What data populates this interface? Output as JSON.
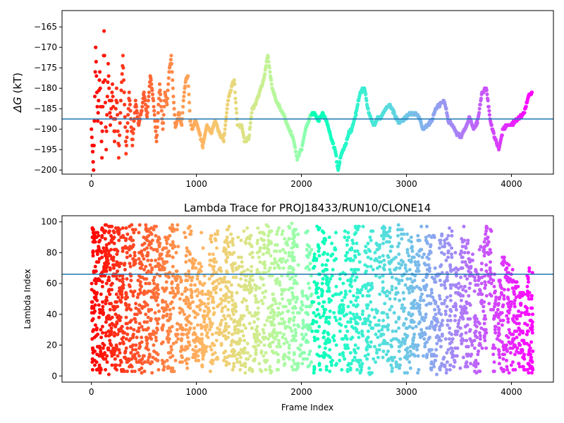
{
  "chart_data": [
    {
      "type": "scatter",
      "title": "",
      "xlabel": "",
      "ylabel": "ΔG (kT)",
      "ylabel_symbol": "ΔG",
      "ylabel_unit": "(kT)",
      "xlim": [
        -280,
        4400
      ],
      "ylim": [
        -201,
        -161
      ],
      "xticks": [
        0,
        1000,
        2000,
        3000,
        4000
      ],
      "yticks": [
        -200,
        -195,
        -190,
        -185,
        -180,
        -175,
        -170,
        -165
      ],
      "hline": -187.5,
      "hline_color": "#1f77b4",
      "colormap": "rainbow (red at frame 0 → violet at frame 4200)",
      "frame_range": [
        0,
        4200
      ],
      "grid": false,
      "trend_points": [
        [
          0,
          -190
        ],
        [
          20,
          -200
        ],
        [
          40,
          -170
        ],
        [
          60,
          -188
        ],
        [
          80,
          -176
        ],
        [
          100,
          -197
        ],
        [
          120,
          -166
        ],
        [
          140,
          -195
        ],
        [
          160,
          -174
        ],
        [
          180,
          -189
        ],
        [
          200,
          -179
        ],
        [
          220,
          -193
        ],
        [
          240,
          -180
        ],
        [
          260,
          -197
        ],
        [
          280,
          -183
        ],
        [
          300,
          -172
        ],
        [
          330,
          -196
        ],
        [
          360,
          -181
        ],
        [
          390,
          -194
        ],
        [
          420,
          -183
        ],
        [
          450,
          -189
        ],
        [
          480,
          -185
        ],
        [
          500,
          -181
        ],
        [
          530,
          -187
        ],
        [
          560,
          -177
        ],
        [
          590,
          -183
        ],
        [
          620,
          -193
        ],
        [
          650,
          -179
        ],
        [
          680,
          -190
        ],
        [
          700,
          -181
        ],
        [
          720,
          -184
        ],
        [
          740,
          -176
        ],
        [
          760,
          -172
        ],
        [
          780,
          -182
        ],
        [
          800,
          -190
        ],
        [
          830,
          -186
        ],
        [
          860,
          -189
        ],
        [
          880,
          -182
        ],
        [
          900,
          -178
        ],
        [
          920,
          -177
        ],
        [
          940,
          -188
        ],
        [
          960,
          -190
        ],
        [
          990,
          -188
        ],
        [
          1020,
          -190
        ],
        [
          1060,
          -194
        ],
        [
          1100,
          -189
        ],
        [
          1140,
          -191
        ],
        [
          1180,
          -188
        ],
        [
          1220,
          -191
        ],
        [
          1260,
          -193
        ],
        [
          1300,
          -183
        ],
        [
          1330,
          -180
        ],
        [
          1360,
          -178
        ],
        [
          1390,
          -189
        ],
        [
          1430,
          -189
        ],
        [
          1460,
          -193
        ],
        [
          1500,
          -192
        ],
        [
          1530,
          -185
        ],
        [
          1560,
          -184
        ],
        [
          1600,
          -181
        ],
        [
          1640,
          -178
        ],
        [
          1680,
          -172
        ],
        [
          1720,
          -180
        ],
        [
          1760,
          -183
        ],
        [
          1800,
          -185
        ],
        [
          1840,
          -187
        ],
        [
          1880,
          -190
        ],
        [
          1920,
          -192
        ],
        [
          1960,
          -197
        ],
        [
          2000,
          -195
        ],
        [
          2040,
          -190
        ],
        [
          2080,
          -187
        ],
        [
          2120,
          -186
        ],
        [
          2160,
          -188
        ],
        [
          2200,
          -186
        ],
        [
          2240,
          -188
        ],
        [
          2280,
          -192
        ],
        [
          2320,
          -195
        ],
        [
          2350,
          -200
        ],
        [
          2380,
          -196
        ],
        [
          2420,
          -194
        ],
        [
          2450,
          -191
        ],
        [
          2480,
          -190
        ],
        [
          2520,
          -186
        ],
        [
          2560,
          -181
        ],
        [
          2600,
          -180
        ],
        [
          2640,
          -186
        ],
        [
          2670,
          -188
        ],
        [
          2700,
          -189
        ],
        [
          2730,
          -187
        ],
        [
          2760,
          -187
        ],
        [
          2800,
          -185
        ],
        [
          2840,
          -184
        ],
        [
          2880,
          -186
        ],
        [
          2920,
          -188
        ],
        [
          2960,
          -188
        ],
        [
          3000,
          -187
        ],
        [
          3040,
          -186
        ],
        [
          3080,
          -186
        ],
        [
          3120,
          -187
        ],
        [
          3160,
          -190
        ],
        [
          3200,
          -189
        ],
        [
          3240,
          -188
        ],
        [
          3280,
          -185
        ],
        [
          3320,
          -184
        ],
        [
          3360,
          -183
        ],
        [
          3400,
          -188
        ],
        [
          3440,
          -189
        ],
        [
          3480,
          -191
        ],
        [
          3520,
          -192
        ],
        [
          3560,
          -190
        ],
        [
          3600,
          -187
        ],
        [
          3640,
          -190
        ],
        [
          3680,
          -188
        ],
        [
          3720,
          -181
        ],
        [
          3760,
          -180
        ],
        [
          3800,
          -188
        ],
        [
          3840,
          -192
        ],
        [
          3880,
          -195
        ],
        [
          3920,
          -190
        ],
        [
          3960,
          -189
        ],
        [
          4000,
          -189
        ],
        [
          4040,
          -188
        ],
        [
          4080,
          -187
        ],
        [
          4120,
          -186
        ],
        [
          4160,
          -182
        ],
        [
          4200,
          -181
        ]
      ]
    },
    {
      "type": "scatter",
      "title": "Lambda Trace for PROJ18433/RUN10/CLONE14",
      "xlabel": "Frame Index",
      "ylabel": "Lambda Index",
      "xlim": [
        -280,
        4400
      ],
      "ylim": [
        -4,
        104
      ],
      "xticks": [
        0,
        1000,
        2000,
        3000,
        4000
      ],
      "yticks": [
        0,
        20,
        40,
        60,
        80,
        100
      ],
      "hline": 66,
      "hline_color": "#1f77b4",
      "colormap": "rainbow (red at frame 0 → violet at frame 4200)",
      "frame_range": [
        0,
        4200
      ],
      "lambda_range": [
        1,
        99
      ],
      "grid": false,
      "columns": [
        [
          15,
          1,
          99
        ],
        [
          45,
          2,
          98
        ],
        [
          80,
          1,
          97
        ],
        [
          110,
          3,
          96
        ],
        [
          140,
          2,
          99
        ],
        [
          170,
          1,
          98
        ],
        [
          200,
          3,
          99
        ],
        [
          230,
          1,
          99
        ],
        [
          260,
          2,
          99
        ],
        [
          290,
          2,
          98
        ],
        [
          330,
          1,
          99
        ],
        [
          370,
          3,
          99
        ],
        [
          410,
          2,
          97
        ],
        [
          450,
          4,
          99
        ],
        [
          490,
          2,
          95
        ],
        [
          530,
          3,
          99
        ],
        [
          560,
          1,
          98
        ],
        [
          600,
          4,
          99
        ],
        [
          640,
          2,
          90
        ],
        [
          680,
          1,
          85
        ],
        [
          720,
          3,
          94
        ],
        [
          760,
          1,
          99
        ],
        [
          800,
          2,
          98
        ],
        [
          860,
          8,
          65
        ],
        [
          900,
          2,
          95
        ],
        [
          940,
          1,
          99
        ],
        [
          980,
          10,
          80
        ],
        [
          1020,
          4,
          75
        ],
        [
          1060,
          1,
          98
        ],
        [
          1100,
          15,
          55
        ],
        [
          1140,
          3,
          95
        ],
        [
          1180,
          2,
          98
        ],
        [
          1230,
          20,
          70
        ],
        [
          1270,
          5,
          90
        ],
        [
          1300,
          1,
          97
        ],
        [
          1340,
          2,
          96
        ],
        [
          1380,
          8,
          75
        ],
        [
          1420,
          2,
          95
        ],
        [
          1470,
          1,
          97
        ],
        [
          1520,
          2,
          92
        ],
        [
          1560,
          10,
          60
        ],
        [
          1600,
          1,
          97
        ],
        [
          1650,
          3,
          98
        ],
        [
          1700,
          2,
          99
        ],
        [
          1740,
          15,
          85
        ],
        [
          1780,
          1,
          99
        ],
        [
          1830,
          4,
          98
        ],
        [
          1880,
          10,
          99
        ],
        [
          1920,
          1,
          99
        ],
        [
          1950,
          2,
          99
        ],
        [
          2000,
          8,
          60
        ],
        [
          2060,
          4,
          95
        ],
        [
          2100,
          1,
          85
        ],
        [
          2160,
          2,
          99
        ],
        [
          2210,
          10,
          98
        ],
        [
          2250,
          2,
          80
        ],
        [
          2300,
          6,
          99
        ],
        [
          2380,
          2,
          70
        ],
        [
          2430,
          3,
          95
        ],
        [
          2480,
          1,
          88
        ],
        [
          2520,
          4,
          99
        ],
        [
          2560,
          2,
          99
        ],
        [
          2620,
          10,
          85
        ],
        [
          2660,
          1,
          99
        ],
        [
          2720,
          2,
          92
        ],
        [
          2780,
          1,
          99
        ],
        [
          2830,
          8,
          97
        ],
        [
          2880,
          2,
          90
        ],
        [
          2940,
          4,
          99
        ],
        [
          2990,
          1,
          98
        ],
        [
          3040,
          2,
          96
        ],
        [
          3080,
          10,
          80
        ],
        [
          3130,
          1,
          99
        ],
        [
          3180,
          4,
          98
        ],
        [
          3230,
          2,
          92
        ],
        [
          3280,
          1,
          99
        ],
        [
          3330,
          3,
          97
        ],
        [
          3380,
          2,
          95
        ],
        [
          3430,
          1,
          99
        ],
        [
          3480,
          8,
          80
        ],
        [
          3530,
          1,
          98
        ],
        [
          3570,
          4,
          92
        ],
        [
          3610,
          2,
          82
        ],
        [
          3660,
          1,
          70
        ],
        [
          3700,
          3,
          90
        ],
        [
          3750,
          10,
          99
        ],
        [
          3790,
          40,
          99
        ],
        [
          3840,
          2,
          70
        ],
        [
          3880,
          5,
          62
        ],
        [
          3920,
          1,
          78
        ],
        [
          3960,
          2,
          85
        ],
        [
          4000,
          4,
          70
        ],
        [
          4040,
          1,
          62
        ],
        [
          4080,
          3,
          58
        ],
        [
          4120,
          2,
          55
        ],
        [
          4160,
          1,
          70
        ],
        [
          4190,
          2,
          68
        ]
      ]
    }
  ]
}
